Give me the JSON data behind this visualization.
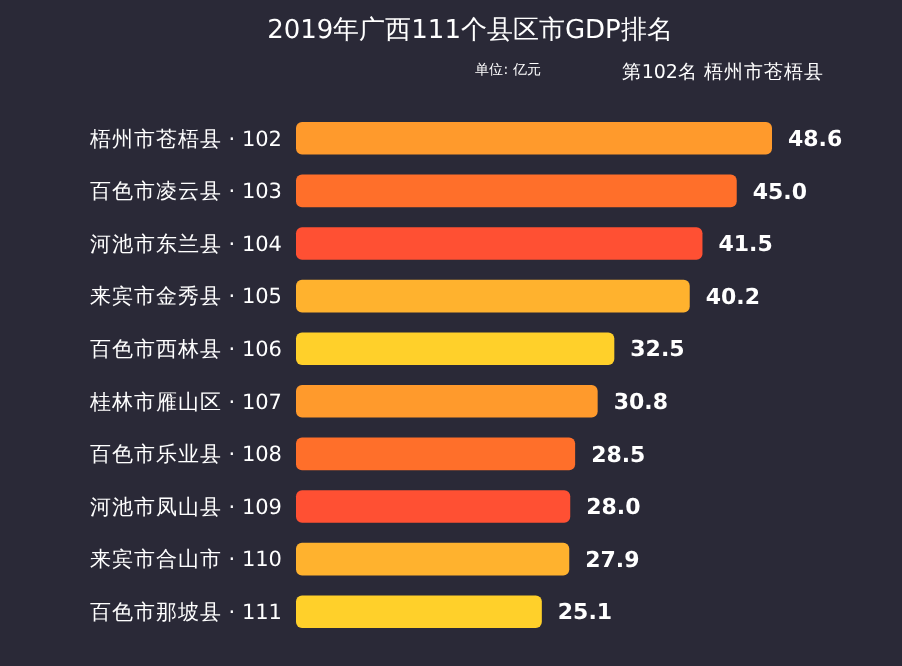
{
  "chart_data": {
    "type": "bar",
    "orientation": "horizontal",
    "title": "2019年广西111个县区市GDP排名",
    "subtitle": "单位: 亿元",
    "annotations": [
      "第102名 梧州市苍梧县"
    ],
    "categories": [
      "梧州市苍梧县 · 102",
      "百色市凌云县 · 103",
      "河池市东兰县 · 104",
      "来宾市金秀县 · 105",
      "百色市西林县 · 106",
      "桂林市雁山区 · 107",
      "百色市乐业县 · 108",
      "河池市凤山县 · 109",
      "来宾市合山市 · 110",
      "百色市那坡县 · 111"
    ],
    "values": [
      48.6,
      45.0,
      41.5,
      40.2,
      32.5,
      30.8,
      28.5,
      28.0,
      27.9,
      25.1
    ],
    "colors": [
      "#ff9a2c",
      "#ff6f2a",
      "#ff5033",
      "#ffb22e",
      "#ffd02a",
      "#ff9a2c",
      "#ff6f2a",
      "#ff5033",
      "#ffb22e",
      "#ffd02a"
    ],
    "value_labels": [
      "48.6",
      "45.0",
      "41.5",
      "40.2",
      "32.5",
      "30.8",
      "28.5",
      "28.0",
      "27.9",
      "25.1"
    ],
    "tick_labels": "y"
  }
}
